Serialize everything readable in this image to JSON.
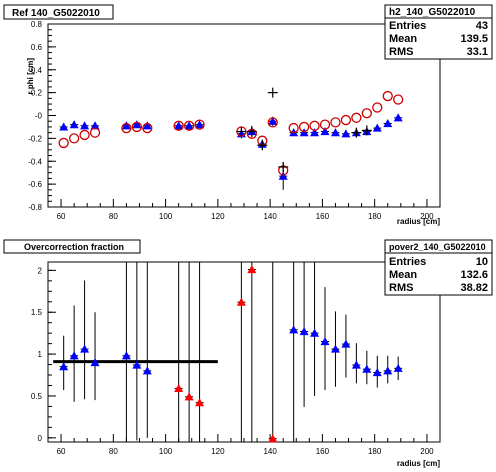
{
  "colors": {
    "background": "#ffffff",
    "frame": "#000000",
    "blue": "#0000ff",
    "red": "#ff0000",
    "dark_red": "#cc0000",
    "black": "#000000"
  },
  "chart_data": [
    {
      "type": "scatter",
      "title": "Ref 140_G5022010",
      "xlabel": "radius [cm]",
      "ylabel": "r phi [cm]",
      "xlim": [
        55,
        205
      ],
      "ylim": [
        -0.8,
        0.8
      ],
      "x_ticks": [
        "60",
        "80",
        "100",
        "120",
        "140",
        "160",
        "180",
        "200"
      ],
      "y_ticks": [
        "-0.8",
        "-0.6",
        "-0.4",
        "-0.2",
        "-0",
        "0.2",
        "0.4",
        "0.6",
        "0.8"
      ],
      "grid": false,
      "stats": {
        "name": "h2_140_G5022010",
        "entries_label": "Entries",
        "entries": "43",
        "mean_label": "Mean",
        "mean": "139.5",
        "rms_label": "RMS",
        "rms": "33.1"
      },
      "series": [
        {
          "marker": "blue-triangle",
          "x": [
            61,
            65,
            69,
            73,
            85,
            89,
            93,
            105,
            109,
            113,
            129,
            133,
            137,
            141,
            145,
            149,
            153,
            157,
            161,
            165,
            169,
            173,
            177,
            181,
            185,
            189
          ],
          "y": [
            -0.1,
            -0.08,
            -0.09,
            -0.09,
            -0.09,
            -0.08,
            -0.09,
            -0.09,
            -0.09,
            -0.08,
            -0.16,
            -0.14,
            -0.25,
            -0.05,
            -0.53,
            -0.15,
            -0.15,
            -0.15,
            -0.14,
            -0.15,
            -0.16,
            -0.15,
            -0.14,
            -0.11,
            -0.07,
            -0.02
          ],
          "err": [
            0.03,
            0.03,
            0.03,
            0.03,
            0.03,
            0.03,
            0.03,
            0.03,
            0.03,
            0.03,
            0.04,
            0.05,
            0.04,
            0.04,
            0.12,
            0.03,
            0.03,
            0.03,
            0.03,
            0.03,
            0.03,
            0.03,
            0.03,
            0.03,
            0.03,
            0.03
          ]
        },
        {
          "marker": "red-open-circle",
          "x": [
            61,
            65,
            69,
            73,
            85,
            89,
            93,
            105,
            109,
            113,
            129,
            133,
            137,
            141,
            145,
            149,
            153,
            157,
            161,
            165,
            169,
            173,
            177,
            181,
            185,
            189
          ],
          "y": [
            -0.24,
            -0.2,
            -0.17,
            -0.15,
            -0.11,
            -0.1,
            -0.11,
            -0.09,
            -0.09,
            -0.08,
            -0.14,
            -0.16,
            -0.22,
            -0.06,
            -0.48,
            -0.11,
            -0.1,
            -0.09,
            -0.08,
            -0.06,
            -0.04,
            -0.02,
            0.02,
            0.07,
            0.17,
            0.14
          ]
        },
        {
          "marker": "black-cross",
          "x": [
            129,
            133,
            137,
            141,
            145,
            173,
            177
          ],
          "y": [
            -0.14,
            -0.14,
            -0.26,
            0.2,
            -0.45,
            -0.15,
            -0.13
          ]
        }
      ]
    },
    {
      "type": "scatter",
      "title": "Overcorrection fraction",
      "xlabel": "radius [cm]",
      "ylabel": "",
      "xlim": [
        55,
        205
      ],
      "ylim": [
        -0.05,
        2.1
      ],
      "x_ticks": [
        "60",
        "80",
        "100",
        "120",
        "140",
        "160",
        "180",
        "200"
      ],
      "y_ticks": [
        "0",
        "0.5",
        "1",
        "1.5",
        "2"
      ],
      "grid": false,
      "stats": {
        "name": "pover2_140_G5022010",
        "entries_label": "Entries",
        "entries": "10",
        "mean_label": "Mean",
        "mean": "132.6",
        "rms_label": "RMS",
        "rms": "38.82"
      },
      "reference_line": {
        "x_from": 57,
        "x_to": 120,
        "y": 0.91
      },
      "series": [
        {
          "marker": "blue-triangle",
          "x": [
            61,
            65,
            69,
            73,
            85,
            89,
            93,
            149,
            153,
            157,
            161,
            165,
            169,
            173,
            177,
            181,
            185,
            189
          ],
          "y": [
            0.85,
            0.98,
            1.06,
            0.9,
            0.98,
            0.87,
            0.8,
            1.29,
            1.27,
            1.25,
            1.15,
            1.06,
            1.12,
            0.87,
            0.82,
            0.78,
            0.8,
            0.83
          ],
          "err_lo": [
            0.28,
            0.55,
            0.6,
            0.45,
            1.1,
            0.9,
            0.8,
            1.34,
            0.9,
            0.75,
            0.58,
            0.45,
            0.4,
            0.22,
            0.18,
            0.18,
            0.15,
            0.14
          ],
          "err_hi": [
            0.37,
            0.6,
            0.82,
            0.6,
            1.12,
            1.23,
            1.3,
            0.81,
            0.83,
            0.85,
            0.65,
            0.45,
            0.35,
            0.26,
            0.22,
            0.2,
            0.18,
            0.14
          ]
        },
        {
          "marker": "red-triangle",
          "x": [
            105,
            109,
            113,
            129,
            133,
            141
          ],
          "y": [
            0.59,
            0.49,
            0.42,
            1.62,
            2.01,
            -0.01
          ],
          "err_lo": [
            0.64,
            0.54,
            0.47,
            1.67,
            2.06,
            0.04
          ],
          "err_hi": [
            1.51,
            1.61,
            1.68,
            0.48,
            0.09,
            2.11
          ]
        }
      ]
    }
  ]
}
